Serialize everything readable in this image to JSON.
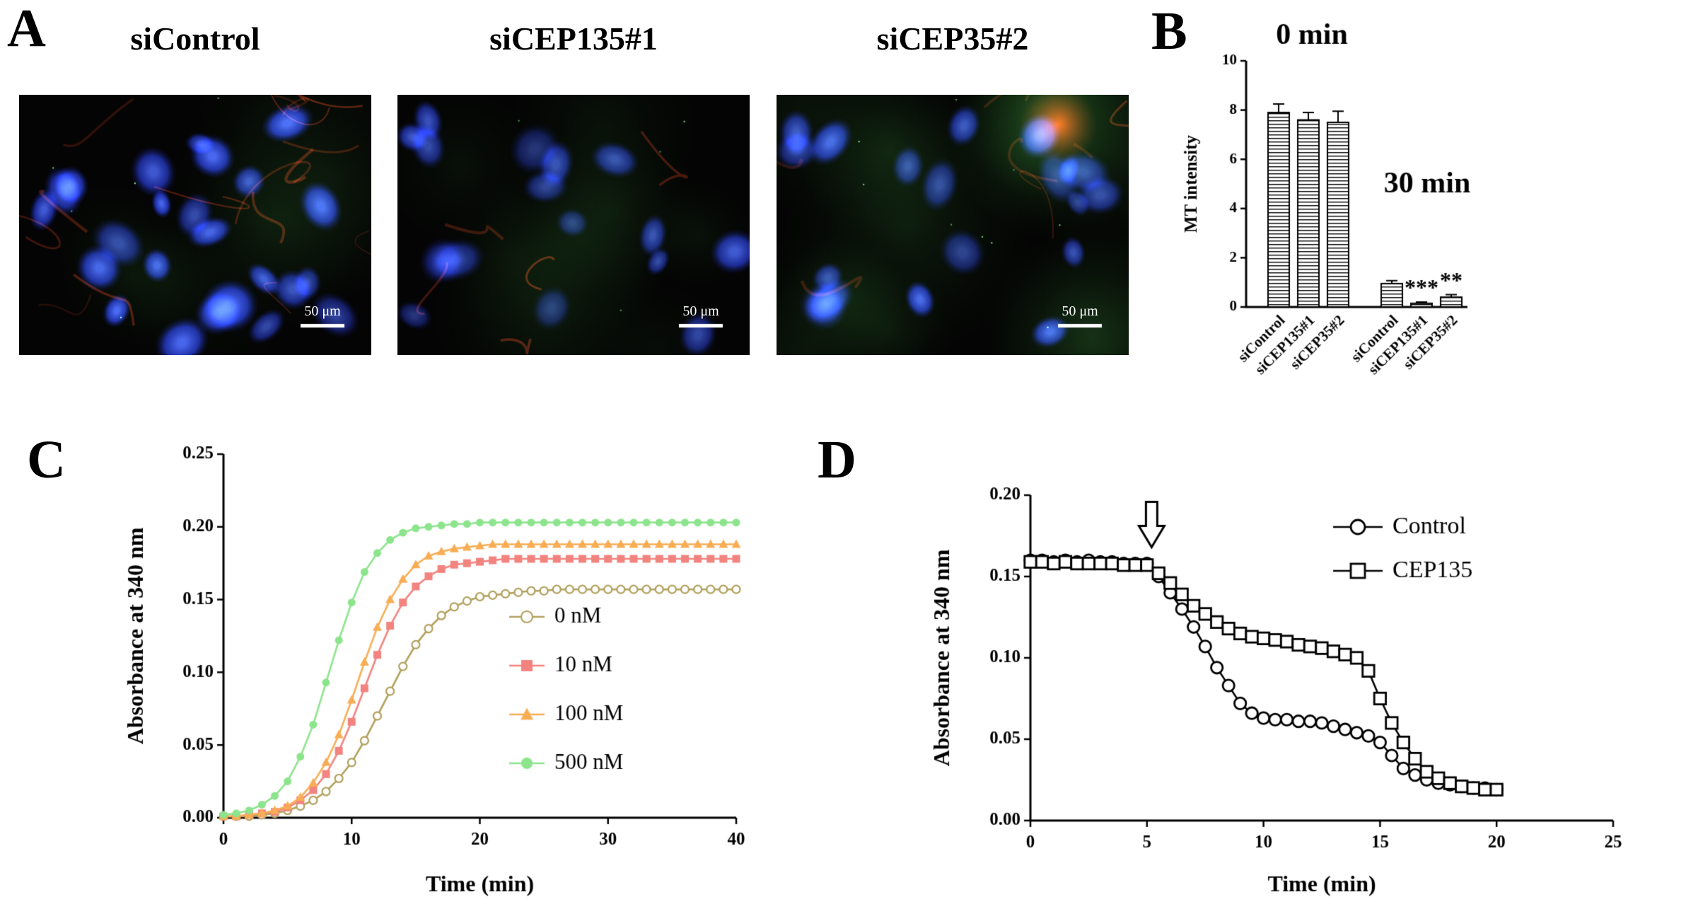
{
  "figure": {
    "panel_a": {
      "label": "A",
      "images": [
        {
          "title": "siControl",
          "scale_bar": "50 μm"
        },
        {
          "title": "siCEP135#1",
          "scale_bar": "50 μm"
        },
        {
          "title": "siCEP35#2",
          "scale_bar": "50 μm"
        }
      ]
    },
    "panel_b": {
      "label": "B"
    },
    "panel_c": {
      "label": "C"
    },
    "panel_d": {
      "label": "D"
    }
  },
  "chart_data": [
    {
      "id": "panel-b-bar",
      "type": "bar",
      "title": "",
      "ylabel": "MT intensity",
      "ylim": [
        0,
        10
      ],
      "yticks": [
        0,
        2,
        4,
        6,
        8,
        10
      ],
      "bar_fill": "horizontal-hatch",
      "grid": false,
      "groups": [
        {
          "label": "0 min",
          "bars": [
            {
              "category": "siControl",
              "value": 7.9,
              "error": 0.35
            },
            {
              "category": "siCEP135#1",
              "value": 7.6,
              "error": 0.3
            },
            {
              "category": "siCEP35#2",
              "value": 7.5,
              "error": 0.45
            }
          ]
        },
        {
          "label": "30 min",
          "bars": [
            {
              "category": "siControl",
              "value": 0.95,
              "error": 0.12
            },
            {
              "category": "siCEP135#1",
              "value": 0.15,
              "error": 0.05,
              "significance": "***"
            },
            {
              "category": "siCEP35#2",
              "value": 0.4,
              "error": 0.1,
              "significance": "**"
            }
          ]
        }
      ]
    },
    {
      "id": "panel-c-line",
      "type": "line",
      "xlabel": "Time (min)",
      "ylabel": "Absorbance at 340 nm",
      "xlim": [
        0,
        40
      ],
      "ylim": [
        0,
        0.25
      ],
      "xticks": [
        0,
        10,
        20,
        30,
        40
      ],
      "yticks": [
        0,
        0.05,
        0.1,
        0.15,
        0.2,
        0.25
      ],
      "grid": false,
      "legend_position": "inside-right",
      "x": [
        0,
        1,
        2,
        3,
        4,
        5,
        6,
        7,
        8,
        9,
        10,
        11,
        12,
        13,
        14,
        15,
        16,
        17,
        18,
        19,
        20,
        21,
        22,
        23,
        24,
        25,
        26,
        27,
        28,
        29,
        30,
        31,
        32,
        33,
        34,
        35,
        36,
        37,
        38,
        39,
        40
      ],
      "series": [
        {
          "name": "0 nM",
          "color": "#b1a05c",
          "marker": "circle-open",
          "values": [
            0.001,
            0.001,
            0.001,
            0.002,
            0.003,
            0.005,
            0.008,
            0.012,
            0.018,
            0.027,
            0.038,
            0.053,
            0.07,
            0.087,
            0.104,
            0.119,
            0.13,
            0.139,
            0.145,
            0.149,
            0.152,
            0.153,
            0.154,
            0.155,
            0.156,
            0.156,
            0.157,
            0.157,
            0.157,
            0.157,
            0.157,
            0.157,
            0.157,
            0.157,
            0.157,
            0.157,
            0.157,
            0.157,
            0.157,
            0.157,
            0.157
          ]
        },
        {
          "name": "10 nM",
          "color": "#f2837e",
          "marker": "square-filled",
          "values": [
            0.001,
            0.001,
            0.002,
            0.003,
            0.004,
            0.007,
            0.012,
            0.019,
            0.03,
            0.046,
            0.066,
            0.089,
            0.112,
            0.132,
            0.148,
            0.159,
            0.166,
            0.171,
            0.174,
            0.175,
            0.176,
            0.177,
            0.178,
            0.178,
            0.178,
            0.178,
            0.178,
            0.178,
            0.178,
            0.178,
            0.178,
            0.178,
            0.178,
            0.178,
            0.178,
            0.178,
            0.178,
            0.178,
            0.178,
            0.178,
            0.178
          ]
        },
        {
          "name": "100 nM",
          "color": "#f8ad55",
          "marker": "triangle-filled",
          "values": [
            0.001,
            0.001,
            0.002,
            0.003,
            0.005,
            0.008,
            0.014,
            0.024,
            0.038,
            0.057,
            0.081,
            0.107,
            0.131,
            0.15,
            0.164,
            0.174,
            0.18,
            0.183,
            0.185,
            0.186,
            0.187,
            0.188,
            0.188,
            0.188,
            0.188,
            0.188,
            0.188,
            0.188,
            0.188,
            0.188,
            0.188,
            0.188,
            0.188,
            0.188,
            0.188,
            0.188,
            0.188,
            0.188,
            0.188,
            0.188,
            0.188
          ]
        },
        {
          "name": "500 nM",
          "color": "#8ce48c",
          "marker": "circle-filled",
          "values": [
            0.002,
            0.003,
            0.005,
            0.009,
            0.015,
            0.025,
            0.042,
            0.064,
            0.093,
            0.122,
            0.148,
            0.169,
            0.182,
            0.191,
            0.196,
            0.199,
            0.2,
            0.201,
            0.202,
            0.202,
            0.203,
            0.203,
            0.203,
            0.203,
            0.203,
            0.203,
            0.203,
            0.203,
            0.203,
            0.203,
            0.203,
            0.203,
            0.203,
            0.203,
            0.203,
            0.203,
            0.203,
            0.203,
            0.203,
            0.203,
            0.203
          ]
        }
      ]
    },
    {
      "id": "panel-d-line",
      "type": "line",
      "xlabel": "Time (min)",
      "ylabel": "Absorbance at 340 nm",
      "xlim": [
        0,
        25
      ],
      "ylim": [
        0,
        0.2
      ],
      "xticks": [
        0,
        5,
        10,
        15,
        20,
        25
      ],
      "yticks": [
        0,
        0.05,
        0.1,
        0.15,
        0.2
      ],
      "grid": false,
      "legend_position": "top-right",
      "annotations": [
        {
          "type": "arrow-down",
          "x": 5.2,
          "y": 0.168
        }
      ],
      "x": [
        0,
        0.5,
        1,
        1.5,
        2,
        2.5,
        3,
        3.5,
        4,
        4.5,
        5,
        5.5,
        6,
        6.5,
        7,
        7.5,
        8,
        8.5,
        9,
        9.5,
        10,
        10.5,
        11,
        11.5,
        12,
        12.5,
        13,
        13.5,
        14,
        14.5,
        15,
        15.5,
        16,
        16.5,
        17,
        17.5,
        18,
        18.5,
        19,
        19.5,
        20
      ],
      "series": [
        {
          "name": "Control",
          "color": "#000000",
          "marker": "circle-open",
          "values": [
            0.16,
            0.16,
            0.159,
            0.16,
            0.159,
            0.16,
            0.159,
            0.159,
            0.158,
            0.158,
            0.158,
            0.15,
            0.14,
            0.13,
            0.119,
            0.107,
            0.094,
            0.083,
            0.072,
            0.066,
            0.063,
            0.062,
            0.062,
            0.061,
            0.061,
            0.06,
            0.058,
            0.056,
            0.054,
            0.052,
            0.048,
            0.04,
            0.032,
            0.028,
            0.025,
            0.023,
            0.022,
            0.021,
            0.02,
            0.02,
            0.019
          ]
        },
        {
          "name": "CEP135",
          "color": "#000000",
          "marker": "square-open",
          "values": [
            0.159,
            0.159,
            0.158,
            0.159,
            0.158,
            0.158,
            0.158,
            0.158,
            0.157,
            0.157,
            0.157,
            0.152,
            0.146,
            0.139,
            0.132,
            0.127,
            0.122,
            0.118,
            0.115,
            0.113,
            0.112,
            0.111,
            0.11,
            0.108,
            0.107,
            0.106,
            0.104,
            0.102,
            0.1,
            0.092,
            0.075,
            0.06,
            0.048,
            0.038,
            0.03,
            0.026,
            0.023,
            0.021,
            0.02,
            0.019,
            0.019
          ]
        }
      ]
    }
  ]
}
